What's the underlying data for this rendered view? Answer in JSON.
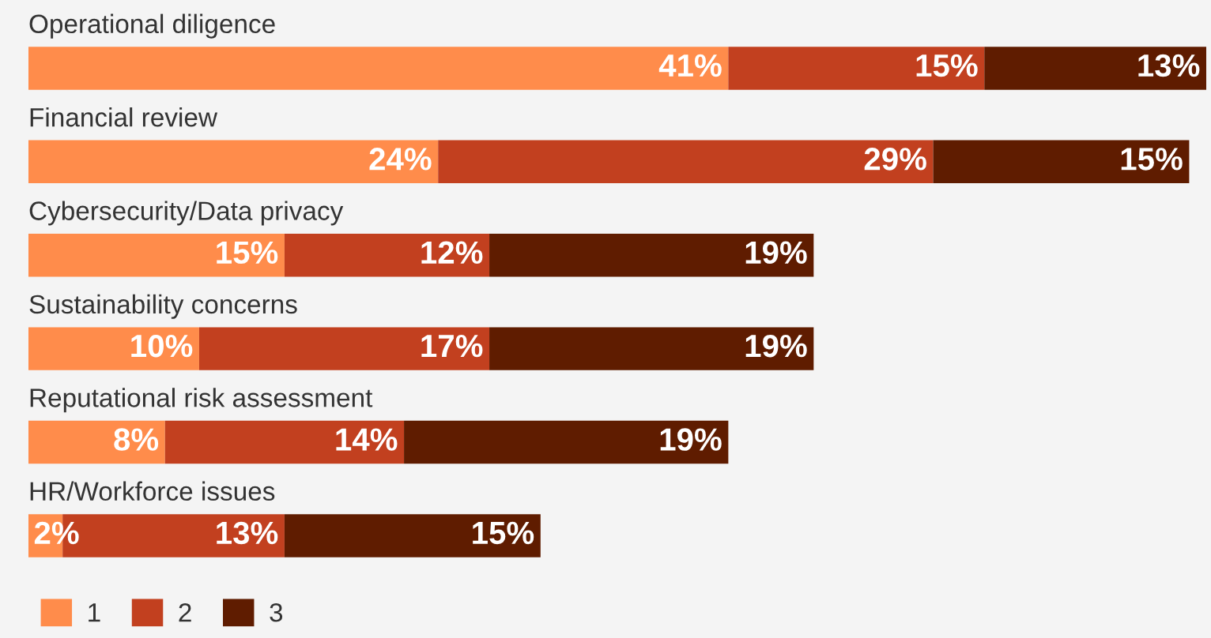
{
  "chart_data": {
    "type": "bar",
    "orientation": "horizontal",
    "stacked": true,
    "categories": [
      "Operational diligence",
      "Financial review",
      "Cybersecurity/Data privacy",
      "Sustainability concerns",
      "Reputational risk assessment",
      "HR/Workforce issues"
    ],
    "series": [
      {
        "name": "1",
        "color": "#ff8c4b",
        "values": [
          41,
          24,
          15,
          10,
          8,
          2
        ],
        "value_labels": [
          "41%",
          "24%",
          "15%",
          "10%",
          "8%",
          "2%"
        ]
      },
      {
        "name": "2",
        "color": "#c2401f",
        "values": [
          15,
          29,
          12,
          17,
          14,
          13
        ],
        "value_labels": [
          "15%",
          "29%",
          "12%",
          "17%",
          "14%",
          "13%"
        ]
      },
      {
        "name": "3",
        "color": "#5f1c00",
        "values": [
          13,
          15,
          19,
          19,
          19,
          15
        ],
        "value_labels": [
          "13%",
          "15%",
          "19%",
          "19%",
          "19%",
          "15%"
        ]
      }
    ],
    "legend": "bottom left"
  }
}
